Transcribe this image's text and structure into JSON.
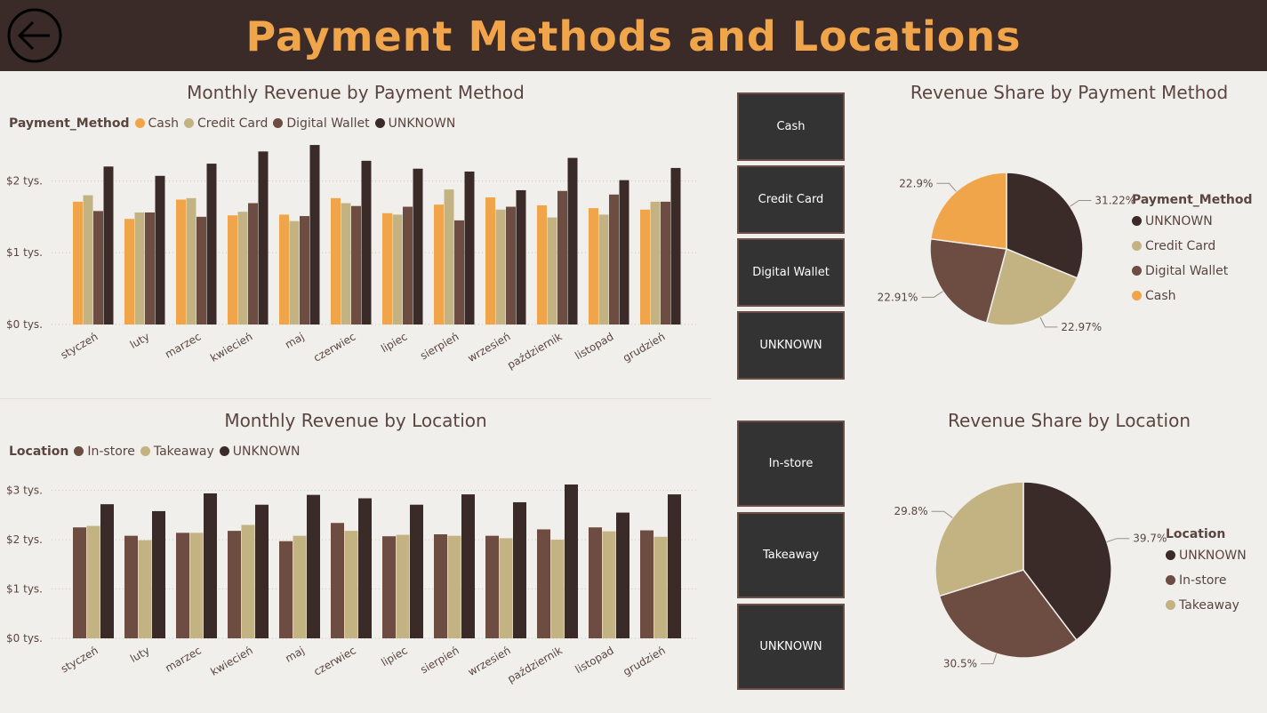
{
  "header": {
    "title": "Payment Methods and Locations"
  },
  "colors": {
    "cash": "#f1a54a",
    "credit_card": "#c3b382",
    "digital_wallet": "#6d4c41",
    "unknown_payment": "#3a2a28",
    "in_store": "#6d4c41",
    "takeaway": "#c3b382",
    "unknown_location": "#3a2a28",
    "slicer_bg": "#333333",
    "slicer_border": "#6b4e45"
  },
  "payment_slicer": [
    "Cash",
    "Credit Card",
    "Digital Wallet",
    "UNKNOWN"
  ],
  "location_slicer": [
    "In-store",
    "Takeaway",
    "UNKNOWN"
  ],
  "chart_data": [
    {
      "type": "bar",
      "title": "Monthly Revenue by Payment Method",
      "legend_title": "Payment_Method",
      "legend_position": "top-left",
      "grid": true,
      "ylim": [
        0,
        2600
      ],
      "yticks": [
        0,
        1000,
        2000
      ],
      "ytick_labels": [
        "$0 tys.",
        "$1 tys.",
        "$2 tys."
      ],
      "categories": [
        "styczeń",
        "luty",
        "marzec",
        "kwiecień",
        "maj",
        "czerwiec",
        "lipiec",
        "sierpień",
        "wrzesień",
        "październik",
        "listopad",
        "grudzień"
      ],
      "series": [
        {
          "name": "Cash",
          "color": "#f1a54a",
          "values": [
            1710,
            1470,
            1740,
            1520,
            1530,
            1760,
            1550,
            1670,
            1770,
            1660,
            1620,
            1600
          ]
        },
        {
          "name": "Credit Card",
          "color": "#c3b382",
          "values": [
            1800,
            1560,
            1760,
            1570,
            1440,
            1690,
            1530,
            1880,
            1600,
            1490,
            1530,
            1710
          ]
        },
        {
          "name": "Digital Wallet",
          "color": "#6d4c41",
          "values": [
            1580,
            1560,
            1500,
            1690,
            1510,
            1650,
            1640,
            1450,
            1640,
            1860,
            1810,
            1710
          ]
        },
        {
          "name": "UNKNOWN",
          "color": "#3a2a28",
          "values": [
            2200,
            2070,
            2240,
            2410,
            2500,
            2280,
            2170,
            2130,
            1870,
            2320,
            2010,
            2180
          ]
        }
      ]
    },
    {
      "type": "bar",
      "title": "Monthly Revenue by Location",
      "legend_title": "Location",
      "legend_position": "top-left",
      "grid": true,
      "ylim": [
        0,
        3300
      ],
      "yticks": [
        0,
        1000,
        2000,
        3000
      ],
      "ytick_labels": [
        "$0 tys.",
        "$1 tys.",
        "$2 tys.",
        "$3 tys."
      ],
      "categories": [
        "styczeń",
        "luty",
        "marzec",
        "kwiecień",
        "maj",
        "czerwiec",
        "lipiec",
        "sierpień",
        "wrzesień",
        "październik",
        "listopad",
        "grudzień"
      ],
      "series": [
        {
          "name": "In-store",
          "color": "#6d4c41",
          "values": [
            2250,
            2080,
            2140,
            2180,
            1970,
            2340,
            2070,
            2110,
            2080,
            2210,
            2250,
            2190
          ]
        },
        {
          "name": "Takeaway",
          "color": "#c3b382",
          "values": [
            2280,
            1990,
            2140,
            2300,
            2080,
            2180,
            2100,
            2080,
            2030,
            2000,
            2170,
            2060
          ]
        },
        {
          "name": "UNKNOWN",
          "color": "#3a2a28",
          "values": [
            2720,
            2580,
            2940,
            2710,
            2910,
            2840,
            2710,
            2920,
            2760,
            3120,
            2550,
            2920
          ]
        }
      ]
    },
    {
      "type": "pie",
      "title": "Revenue Share by Payment Method",
      "legend_title": "Payment_Method",
      "legend_position": "right",
      "slices": [
        {
          "name": "UNKNOWN",
          "value": 31.22,
          "label": "31.22%",
          "color": "#3a2a28"
        },
        {
          "name": "Credit Card",
          "value": 22.97,
          "label": "22.97%",
          "color": "#c3b382"
        },
        {
          "name": "Digital Wallet",
          "value": 22.91,
          "label": "22.91%",
          "color": "#6d4c41"
        },
        {
          "name": "Cash",
          "value": 22.9,
          "label": "22.9%",
          "color": "#f1a54a"
        }
      ]
    },
    {
      "type": "pie",
      "title": "Revenue Share by Location",
      "legend_title": "Location",
      "legend_position": "right",
      "slices": [
        {
          "name": "UNKNOWN",
          "value": 39.7,
          "label": "39.7%",
          "color": "#3a2a28"
        },
        {
          "name": "In-store",
          "value": 30.5,
          "label": "30.5%",
          "color": "#6d4c41"
        },
        {
          "name": "Takeaway",
          "value": 29.8,
          "label": "29.8%",
          "color": "#c3b382"
        }
      ]
    }
  ]
}
